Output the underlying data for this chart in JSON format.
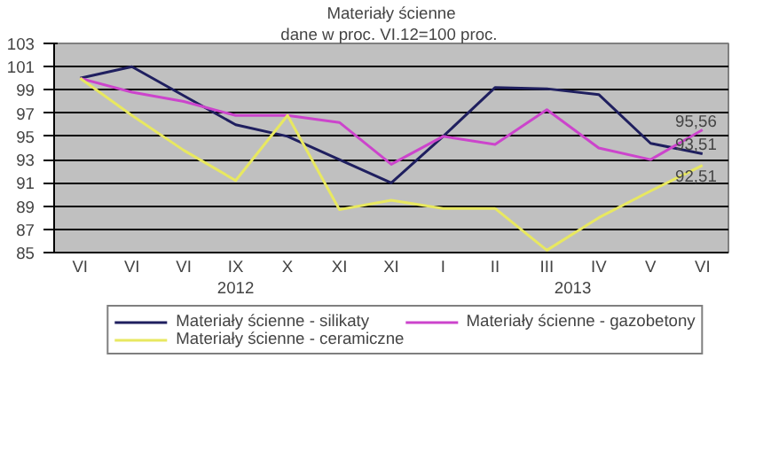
{
  "chart_data": {
    "type": "line",
    "title": "Materiały ścienne",
    "subtitle": "dane w  proc. VI.12=100 proc.",
    "categories": [
      "VI",
      "VI",
      "VI",
      "IX",
      "X",
      "XI",
      "XI",
      "I",
      "II",
      "III",
      "IV",
      "V",
      "VI"
    ],
    "annotations": [
      "2012",
      "2013"
    ],
    "series": [
      {
        "name": "Materiały ścienne - silikaty",
        "color": "#1f1f5f",
        "values": [
          100,
          101,
          98.5,
          96,
          95,
          93,
          91,
          95,
          99.2,
          99.1,
          98.6,
          94.4,
          93.51
        ],
        "value_labels": [
          null,
          null,
          null,
          null,
          null,
          null,
          null,
          null,
          null,
          null,
          null,
          null,
          "93,51"
        ]
      },
      {
        "name": "Materiały ścienne - gazobetony",
        "color": "#cc44cc",
        "values": [
          100,
          98.8,
          98,
          96.8,
          96.8,
          96.2,
          92.6,
          95,
          94.3,
          97.3,
          94,
          93,
          95.56
        ],
        "value_labels": [
          null,
          null,
          null,
          null,
          null,
          null,
          null,
          null,
          null,
          null,
          null,
          null,
          "95,56"
        ]
      },
      {
        "name": "Materiały ścienne - ceramiczne",
        "color": "#e8e860",
        "values": [
          100,
          96.8,
          93.8,
          91.2,
          96.8,
          88.7,
          89.5,
          88.8,
          88.8,
          85.2,
          88,
          90.3,
          92.51
        ],
        "value_labels": [
          null,
          null,
          null,
          null,
          null,
          null,
          null,
          null,
          null,
          null,
          null,
          null,
          "92,51"
        ]
      }
    ],
    "ylim": [
      85,
      103
    ],
    "yticks": [
      85,
      87,
      89,
      91,
      93,
      95,
      97,
      99,
      101,
      103
    ],
    "grid": "y",
    "legend": "bottom",
    "marker": "none",
    "line_style": "solid"
  }
}
